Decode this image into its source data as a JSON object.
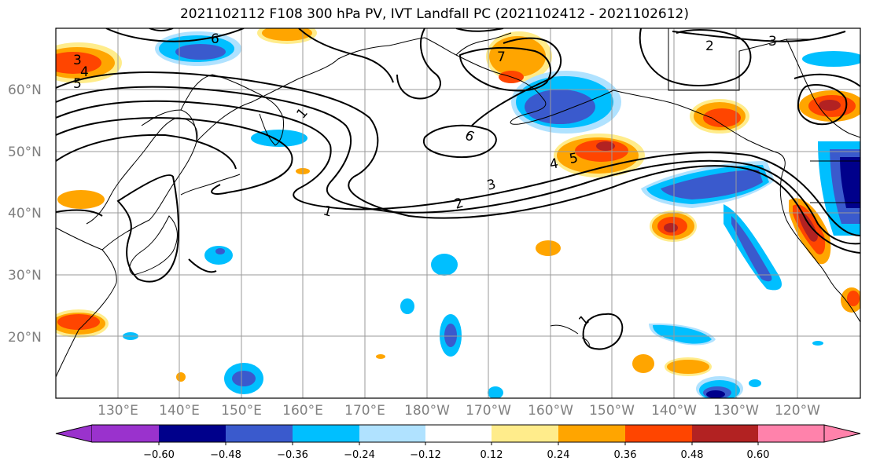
{
  "title": "2021102112 F108 300 hPa PV, IVT Landfall PC (2021102412 - 2021102612)",
  "lat_labels": [
    "20°N",
    "30°N",
    "40°N",
    "50°N",
    "60°N"
  ],
  "lon_labels": [
    "130°E",
    "140°E",
    "150°E",
    "160°E",
    "170°E",
    "180°W",
    "170°W",
    "160°W",
    "150°W",
    "140°W",
    "130°W",
    "120°W"
  ],
  "contour_labels": [
    "1",
    "1",
    "1",
    "2",
    "2",
    "3",
    "3",
    "3",
    "4",
    "4",
    "5",
    "5",
    "6",
    "6",
    "7"
  ],
  "colorbar": {
    "ticks": [
      "−0.60",
      "−0.48",
      "−0.36",
      "−0.24",
      "−0.12",
      "0.12",
      "0.24",
      "0.36",
      "0.48",
      "0.60"
    ],
    "colors": [
      "#9a32cd",
      "#00008b",
      "#3a5acd",
      "#00bfff",
      "#b0e2ff",
      "#ffffff",
      "#ffec8b",
      "#ffa500",
      "#ff4500",
      "#b22222",
      "#ff82ab"
    ]
  },
  "colors": {
    "grid": "#9a9a9a",
    "coast": "#000000",
    "contour": "#000000",
    "axis_text": "#808080"
  }
}
